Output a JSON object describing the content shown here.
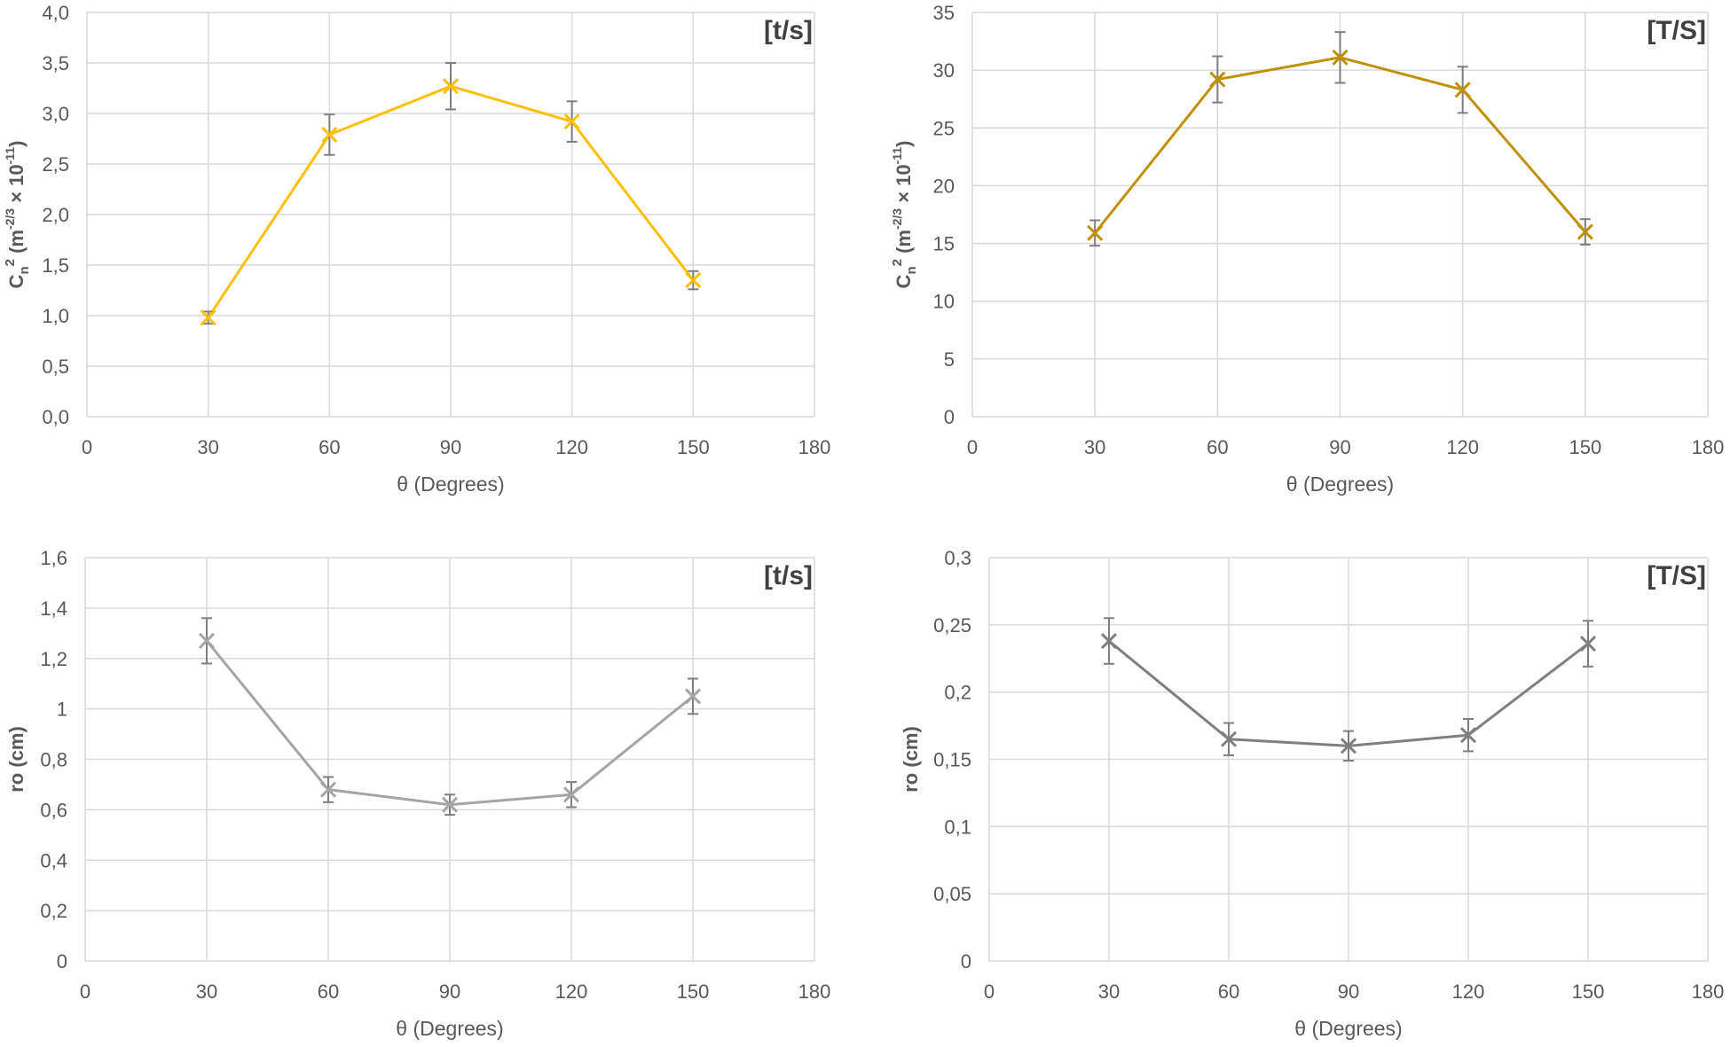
{
  "chart_data": [
    {
      "type": "line",
      "tag": "[t/s]",
      "xlabel": "θ  (Degrees)",
      "ylabel": {
        "base": "C",
        "sub": "n",
        "sup": "2",
        "rest1": " (m",
        "sup2": "-2/3",
        "rest2": " × 10",
        "sup3": "-11",
        "rest3": ")"
      },
      "xlim": [
        0,
        180
      ],
      "xticks": [
        "0",
        "30",
        "60",
        "90",
        "120",
        "150",
        "180"
      ],
      "ylim": [
        0,
        4
      ],
      "yticks": [
        "0,0",
        "0,5",
        "1,0",
        "1,5",
        "2,0",
        "2,5",
        "3,0",
        "3,5",
        "4,0"
      ],
      "color": "#ffc000",
      "grid": true,
      "x": [
        30,
        60,
        90,
        120,
        150
      ],
      "y": [
        0.98,
        2.79,
        3.27,
        2.92,
        1.35
      ],
      "error": [
        0.06,
        0.2,
        0.23,
        0.2,
        0.09
      ]
    },
    {
      "type": "line",
      "tag": "[T/S]",
      "xlabel": "θ  (Degrees)",
      "ylabel": {
        "base": "C",
        "sub": "n",
        "sup": "2",
        "rest1": " (m",
        "sup2": "-2/3",
        "rest2": " × 10",
        "sup3": "-11",
        "rest3": ")"
      },
      "xlim": [
        0,
        180
      ],
      "xticks": [
        "0",
        "30",
        "60",
        "90",
        "120",
        "150",
        "180"
      ],
      "ylim": [
        0,
        35
      ],
      "yticks": [
        "0",
        "5",
        "10",
        "15",
        "20",
        "25",
        "30",
        "35"
      ],
      "color": "#bf9000",
      "grid": true,
      "x": [
        30,
        60,
        90,
        120,
        150
      ],
      "y": [
        15.9,
        29.2,
        31.1,
        28.3,
        16.0
      ],
      "error": [
        1.1,
        2.0,
        2.2,
        2.0,
        1.1
      ]
    },
    {
      "type": "line",
      "tag": "[t/s]",
      "xlabel": "θ  (Degrees)",
      "ylabel": {
        "base": "ro (cm)"
      },
      "xlim": [
        0,
        180
      ],
      "xticks": [
        "0",
        "30",
        "60",
        "90",
        "120",
        "150",
        "180"
      ],
      "ylim": [
        0,
        1.6
      ],
      "yticks": [
        "0",
        "0,2",
        "0,4",
        "0,6",
        "0,8",
        "1",
        "1,2",
        "1,4",
        "1,6"
      ],
      "color": "#a5a5a5",
      "grid": true,
      "x": [
        30,
        60,
        90,
        120,
        150
      ],
      "y": [
        1.27,
        0.68,
        0.62,
        0.66,
        1.05
      ],
      "error": [
        0.09,
        0.05,
        0.04,
        0.05,
        0.07
      ]
    },
    {
      "type": "line",
      "tag": "[T/S]",
      "xlabel": "θ  (Degrees)",
      "ylabel": {
        "base": "ro (cm)"
      },
      "xlim": [
        0,
        180
      ],
      "xticks": [
        "0",
        "30",
        "60",
        "90",
        "120",
        "150",
        "180"
      ],
      "ylim": [
        0,
        0.3
      ],
      "yticks": [
        "0",
        "0,05",
        "0,1",
        "0,15",
        "0,2",
        "0,25",
        "0,3"
      ],
      "color": "#7f7f7f",
      "grid": true,
      "x": [
        30,
        60,
        90,
        120,
        150
      ],
      "y": [
        0.238,
        0.165,
        0.16,
        0.168,
        0.236
      ],
      "error": [
        0.017,
        0.012,
        0.011,
        0.012,
        0.017
      ]
    }
  ]
}
